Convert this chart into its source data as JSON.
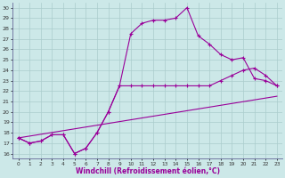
{
  "xlabel": "Windchill (Refroidissement éolien,°C)",
  "bg_color": "#cce8e8",
  "line_color": "#990099",
  "grid_color": "#aacccc",
  "axis_color": "#666699",
  "ylim": [
    15.5,
    30.5
  ],
  "xlim": [
    -0.5,
    23.5
  ],
  "yticks": [
    16,
    17,
    18,
    19,
    20,
    21,
    22,
    23,
    24,
    25,
    26,
    27,
    28,
    29,
    30
  ],
  "xticks": [
    0,
    1,
    2,
    3,
    4,
    5,
    6,
    7,
    8,
    9,
    10,
    11,
    12,
    13,
    14,
    15,
    16,
    17,
    18,
    19,
    20,
    21,
    22,
    23
  ],
  "line1_x": [
    0,
    1,
    2,
    3,
    4,
    5,
    6,
    7,
    8,
    9,
    10,
    11,
    12,
    13,
    14,
    15,
    16,
    17,
    18,
    19,
    20,
    21,
    22,
    23
  ],
  "line1_y": [
    17.5,
    17.0,
    17.2,
    17.8,
    17.8,
    16.0,
    16.5,
    18.0,
    20.0,
    22.5,
    27.5,
    28.5,
    28.8,
    28.8,
    29.0,
    30.0,
    27.3,
    26.5,
    25.5,
    25.0,
    25.2,
    23.2,
    23.0,
    22.5
  ],
  "line2_x": [
    0,
    1,
    2,
    3,
    4,
    5,
    6,
    7,
    8,
    9,
    10,
    11,
    12,
    13,
    14,
    15,
    16,
    17,
    18,
    19,
    20,
    21,
    22,
    23
  ],
  "line2_y": [
    17.5,
    17.0,
    17.2,
    17.8,
    17.8,
    16.0,
    16.5,
    18.0,
    20.0,
    22.5,
    22.5,
    22.5,
    22.5,
    22.5,
    22.5,
    22.5,
    22.5,
    22.5,
    23.0,
    23.5,
    24.0,
    24.2,
    23.5,
    22.5
  ],
  "line3_x": [
    0,
    23
  ],
  "line3_y": [
    17.5,
    21.5
  ]
}
